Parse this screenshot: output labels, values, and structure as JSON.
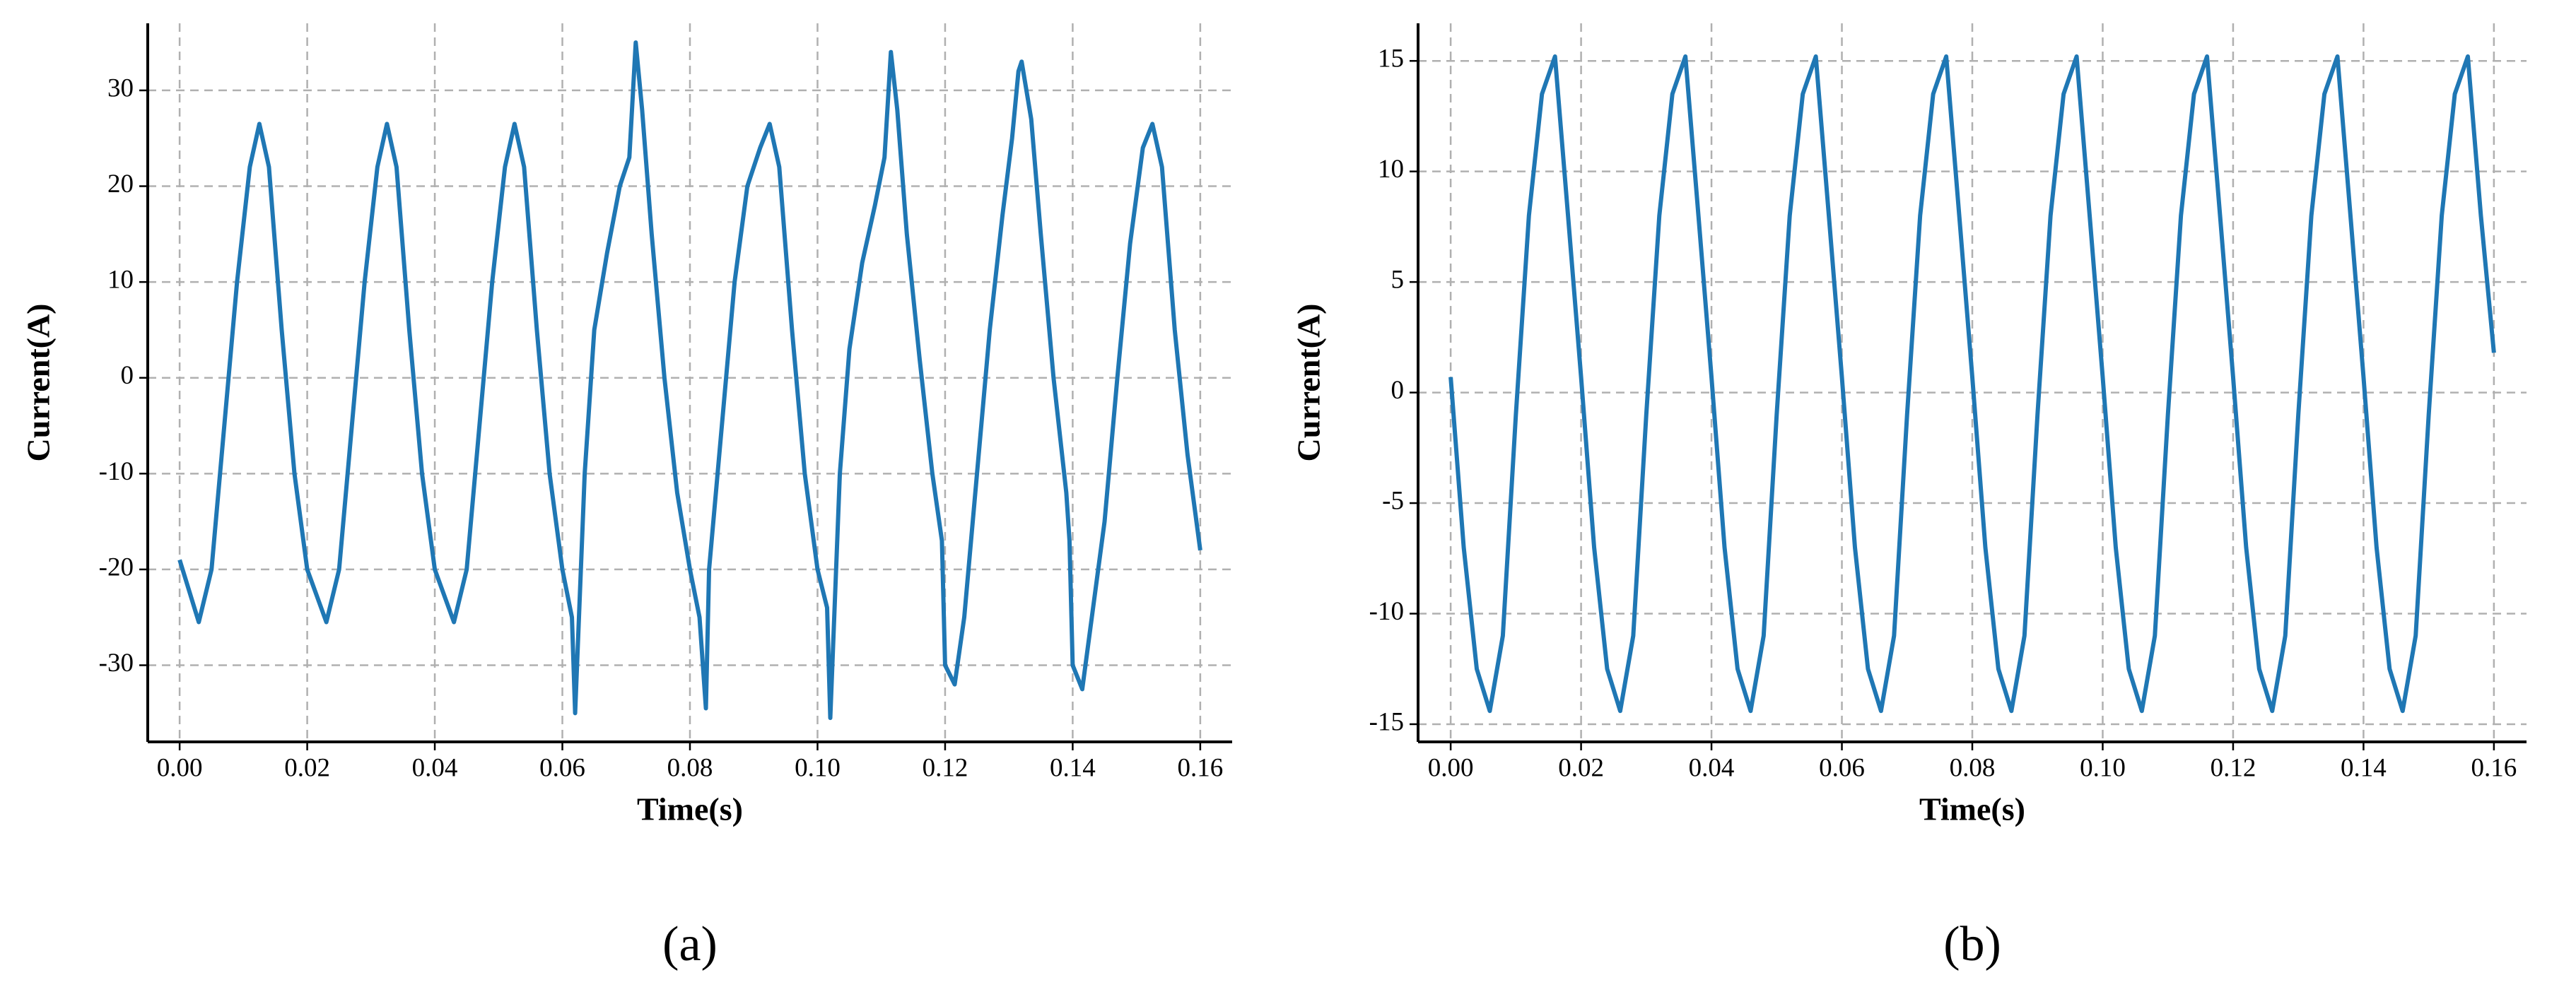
{
  "chart_data": [
    {
      "type": "line",
      "caption": "(a)",
      "xlabel": "Time(s)",
      "ylabel": "Current(A)",
      "grid": true,
      "xlim": [
        -0.005,
        0.165
      ],
      "ylim": [
        -38,
        37
      ],
      "xticks": [
        {
          "value": 0,
          "label": "0.00"
        },
        {
          "value": 0.02,
          "label": "0.02"
        },
        {
          "value": 0.04,
          "label": "0.04"
        },
        {
          "value": 0.06,
          "label": "0.06"
        },
        {
          "value": 0.08,
          "label": "0.08"
        },
        {
          "value": 0.1,
          "label": "0.10"
        },
        {
          "value": 0.12,
          "label": "0.12"
        },
        {
          "value": 0.14,
          "label": "0.14"
        },
        {
          "value": 0.16,
          "label": "0.16"
        }
      ],
      "yticks": [
        -30,
        -20,
        -10,
        0,
        10,
        20,
        30
      ],
      "x": [
        0,
        0.003,
        0.005,
        0.007,
        0.009,
        0.011,
        0.0125,
        0.014,
        0.016,
        0.018,
        0.02,
        0.023,
        0.025,
        0.027,
        0.029,
        0.031,
        0.0325,
        0.034,
        0.036,
        0.038,
        0.04,
        0.043,
        0.045,
        0.047,
        0.049,
        0.051,
        0.0525,
        0.054,
        0.056,
        0.058,
        0.06,
        0.0615,
        0.062,
        0.0635,
        0.065,
        0.067,
        0.069,
        0.0705,
        0.0715,
        0.0725,
        0.074,
        0.076,
        0.078,
        0.08,
        0.0815,
        0.0825,
        0.083,
        0.085,
        0.087,
        0.089,
        0.091,
        0.0925,
        0.094,
        0.096,
        0.098,
        0.1,
        0.1015,
        0.102,
        0.1035,
        0.105,
        0.107,
        0.109,
        0.1105,
        0.1115,
        0.1125,
        0.114,
        0.116,
        0.118,
        0.1195,
        0.12,
        0.1215,
        0.123,
        0.125,
        0.127,
        0.129,
        0.1305,
        0.1315,
        0.132,
        0.1335,
        0.135,
        0.137,
        0.139,
        0.1395,
        0.14,
        0.1415,
        0.143,
        0.145,
        0.147,
        0.149,
        0.151,
        0.1525,
        0.154,
        0.156,
        0.158,
        0.16
      ],
      "series": [
        {
          "color": "#1f77b4",
          "values": [
            -19,
            -25.5,
            -20,
            -5,
            10,
            22,
            26.5,
            22,
            5,
            -10,
            -20,
            -25.5,
            -20,
            -5,
            10,
            22,
            26.5,
            22,
            5,
            -10,
            -20,
            -25.5,
            -20,
            -5,
            10,
            22,
            26.5,
            22,
            5,
            -10,
            -20,
            -25,
            -35,
            -10,
            5,
            13,
            20,
            23,
            35,
            28,
            15,
            0,
            -12,
            -20,
            -25,
            -34.5,
            -20,
            -5,
            10,
            20,
            24,
            26.5,
            22,
            5,
            -10,
            -20,
            -24,
            -35.5,
            -10,
            3,
            12,
            18,
            23,
            34,
            28,
            15,
            2,
            -10,
            -17,
            -30,
            -32,
            -25,
            -10,
            5,
            17,
            25,
            32,
            33,
            27,
            15,
            0,
            -12,
            -17,
            -30,
            -32.5,
            -25,
            -15,
            0,
            14,
            24,
            26.5,
            22,
            5,
            -8,
            -18
          ]
        }
      ]
    },
    {
      "type": "line",
      "caption": "(b)",
      "xlabel": "Time(s)",
      "ylabel": "Current(A)",
      "grid": true,
      "xlim": [
        -0.005,
        0.165
      ],
      "ylim": [
        -15.8,
        16.7
      ],
      "xticks": [
        {
          "value": 0,
          "label": "0.00"
        },
        {
          "value": 0.02,
          "label": "0.02"
        },
        {
          "value": 0.04,
          "label": "0.04"
        },
        {
          "value": 0.06,
          "label": "0.06"
        },
        {
          "value": 0.08,
          "label": "0.08"
        },
        {
          "value": 0.1,
          "label": "0.10"
        },
        {
          "value": 0.12,
          "label": "0.12"
        },
        {
          "value": 0.14,
          "label": "0.14"
        },
        {
          "value": 0.16,
          "label": "0.16"
        }
      ],
      "yticks": [
        -15,
        -10,
        -5,
        0,
        5,
        10,
        15
      ],
      "x": [
        0,
        0.002,
        0.004,
        0.006,
        0.008,
        0.01,
        0.012,
        0.014,
        0.016,
        0.018,
        0.02,
        0.022,
        0.024,
        0.026,
        0.028,
        0.03,
        0.032,
        0.034,
        0.036,
        0.038,
        0.04,
        0.042,
        0.044,
        0.046,
        0.048,
        0.05,
        0.052,
        0.054,
        0.056,
        0.058,
        0.06,
        0.062,
        0.064,
        0.066,
        0.068,
        0.07,
        0.072,
        0.074,
        0.076,
        0.078,
        0.08,
        0.082,
        0.084,
        0.086,
        0.088,
        0.09,
        0.092,
        0.094,
        0.096,
        0.098,
        0.1,
        0.102,
        0.104,
        0.106,
        0.108,
        0.11,
        0.112,
        0.114,
        0.116,
        0.118,
        0.12,
        0.122,
        0.124,
        0.126,
        0.128,
        0.13,
        0.132,
        0.134,
        0.136,
        0.138,
        0.14,
        0.142,
        0.144,
        0.146,
        0.148,
        0.15,
        0.152,
        0.154,
        0.156,
        0.158,
        0.16
      ],
      "series": [
        {
          "color": "#1f77b4",
          "values": [
            0.7,
            -7,
            -12.5,
            -14.4,
            -11,
            -1,
            8,
            13.5,
            15.2,
            8,
            0.7,
            -7,
            -12.5,
            -14.4,
            -11,
            -1,
            8,
            13.5,
            15.2,
            8,
            0.7,
            -7,
            -12.5,
            -14.4,
            -11,
            -1,
            8,
            13.5,
            15.2,
            8,
            0.7,
            -7,
            -12.5,
            -14.4,
            -11,
            -1,
            8,
            13.5,
            15.2,
            8,
            0.7,
            -7,
            -12.5,
            -14.4,
            -11,
            -1,
            8,
            13.5,
            15.2,
            8,
            0.7,
            -7,
            -12.5,
            -14.4,
            -11,
            -1,
            8,
            13.5,
            15.2,
            8,
            0.7,
            -7,
            -12.5,
            -14.4,
            -11,
            -1,
            8,
            13.5,
            15.2,
            8,
            0.7,
            -7,
            -12.5,
            -14.4,
            -11,
            -1,
            8,
            13.5,
            15.2,
            8,
            1.8
          ]
        }
      ]
    }
  ]
}
